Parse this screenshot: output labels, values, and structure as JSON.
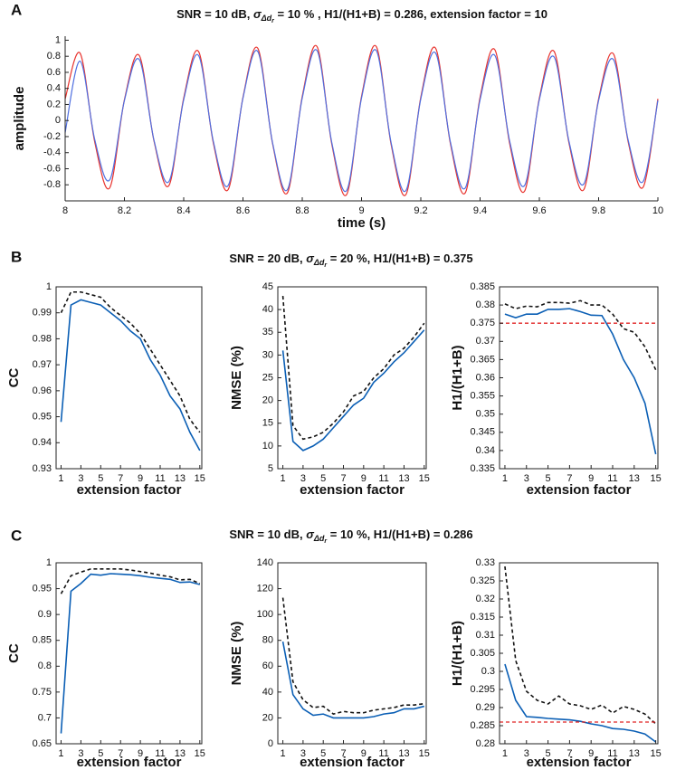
{
  "chart_data": [
    {
      "type": "line",
      "panel": "A",
      "title": [
        "SNR = 10 dB, ",
        "σ",
        "Δd",
        "r",
        " = 10 % , H1/(H1+B) = 0.286,   extension factor = 10"
      ],
      "xlabel": "time (s)",
      "ylabel": "amplitude",
      "box": false,
      "smooth": true,
      "x": [
        8,
        8.05,
        8.1,
        8.15,
        8.2,
        8.25,
        8.3,
        8.35,
        8.4,
        8.45,
        8.5,
        8.55,
        8.6,
        8.65,
        8.7,
        8.75,
        8.8,
        8.85,
        8.9,
        8.95,
        9,
        9.05,
        9.1,
        9.15,
        9.2,
        9.25,
        9.3,
        9.35,
        9.4,
        9.45,
        9.5,
        9.55,
        9.6,
        9.65,
        9.7,
        9.75,
        9.8,
        9.85,
        9.9,
        9.95,
        10
      ],
      "series": [
        {
          "color": "#e8332e",
          "style": "solid",
          "values": [
            0.27,
            0.84,
            -0.27,
            -0.84,
            0.26,
            0.81,
            -0.26,
            -0.81,
            0.28,
            0.86,
            -0.28,
            -0.86,
            0.29,
            0.9,
            -0.29,
            -0.9,
            0.3,
            0.92,
            -0.3,
            -0.92,
            0.3,
            0.92,
            -0.3,
            -0.92,
            0.29,
            0.9,
            -0.29,
            -0.9,
            0.29,
            0.88,
            -0.29,
            -0.88,
            0.28,
            0.86,
            -0.28,
            -0.86,
            0.27,
            0.83,
            -0.27,
            -0.83,
            0.27
          ]
        },
        {
          "color": "#4f6fe0",
          "style": "solid",
          "values": [
            -0.15,
            0.74,
            -0.24,
            -0.74,
            0.25,
            0.76,
            -0.25,
            -0.76,
            0.26,
            0.81,
            -0.26,
            -0.81,
            0.28,
            0.86,
            -0.28,
            -0.86,
            0.28,
            0.87,
            -0.28,
            -0.87,
            0.28,
            0.87,
            -0.28,
            -0.87,
            0.27,
            0.84,
            -0.27,
            -0.84,
            0.26,
            0.81,
            -0.26,
            -0.81,
            0.26,
            0.79,
            -0.26,
            -0.79,
            0.25,
            0.76,
            -0.25,
            -0.76,
            0.25
          ]
        }
      ],
      "xlim": [
        8,
        10
      ],
      "xticks": [
        8,
        8.2,
        8.4,
        8.6,
        8.8,
        9,
        9.2,
        9.4,
        9.6,
        9.8,
        10
      ],
      "ylim": [
        -1,
        1.05
      ],
      "yticks": [
        -0.8,
        -0.6,
        -0.4,
        -0.2,
        0,
        0.2,
        0.4,
        0.6,
        0.8,
        1
      ]
    },
    {
      "type": "line",
      "panel": "B",
      "title": [
        "SNR = 20 dB, ",
        "σ",
        "Δd",
        "r",
        " = 20 %, H1/(H1+B) = 0.375"
      ],
      "xlabel": "extension factor",
      "ylabel": "CC",
      "box": true,
      "x": [
        1,
        2,
        3,
        4,
        5,
        6,
        7,
        8,
        9,
        10,
        11,
        12,
        13,
        14,
        15
      ],
      "series": [
        {
          "color": "#0b5fb5",
          "style": "solid",
          "values": [
            0.948,
            0.993,
            0.995,
            0.994,
            0.993,
            0.99,
            0.987,
            0.983,
            0.98,
            0.972,
            0.966,
            0.958,
            0.953,
            0.944,
            0.937
          ]
        },
        {
          "color": "#111111",
          "style": "dashed",
          "values": [
            0.99,
            0.998,
            0.998,
            0.997,
            0.996,
            0.992,
            0.989,
            0.986,
            0.982,
            0.976,
            0.97,
            0.964,
            0.958,
            0.949,
            0.944
          ]
        }
      ],
      "xlim": [
        0.5,
        15.2
      ],
      "xticks": [
        1,
        3,
        5,
        7,
        9,
        11,
        13,
        15
      ],
      "ylim": [
        0.93,
        1
      ],
      "yticks": [
        0.93,
        0.94,
        0.95,
        0.96,
        0.97,
        0.98,
        0.99,
        1
      ]
    },
    {
      "type": "line",
      "xlabel": "extension factor",
      "ylabel": "NMSE (%)",
      "box": true,
      "x": [
        1,
        2,
        3,
        4,
        5,
        6,
        7,
        8,
        9,
        10,
        11,
        12,
        13,
        14,
        15
      ],
      "series": [
        {
          "color": "#0b5fb5",
          "style": "solid",
          "values": [
            31,
            11,
            9,
            10,
            11.5,
            14,
            16.5,
            19,
            20.5,
            24,
            26,
            28.5,
            30.5,
            33,
            35.5
          ]
        },
        {
          "color": "#111111",
          "style": "dashed",
          "values": [
            43,
            14.5,
            11.5,
            12,
            13,
            15,
            17.5,
            21,
            22,
            25,
            27,
            30,
            31.5,
            34,
            37
          ]
        }
      ],
      "xlim": [
        0.5,
        15.2
      ],
      "xticks": [
        1,
        3,
        5,
        7,
        9,
        11,
        13,
        15
      ],
      "ylim": [
        5,
        45
      ],
      "yticks": [
        5,
        10,
        15,
        20,
        25,
        30,
        35,
        40,
        45
      ]
    },
    {
      "type": "line",
      "xlabel": "extension factor",
      "ylabel": "H1/(H1+B)",
      "box": true,
      "x": [
        1,
        2,
        3,
        4,
        5,
        6,
        7,
        8,
        9,
        10,
        11,
        12,
        13,
        14,
        15
      ],
      "series": [
        {
          "color": "#0b5fb5",
          "style": "solid",
          "values": [
            0.3775,
            0.3765,
            0.3775,
            0.3775,
            0.3788,
            0.3788,
            0.379,
            0.3782,
            0.3772,
            0.3771,
            0.372,
            0.365,
            0.36,
            0.353,
            0.339
          ]
        },
        {
          "color": "#111111",
          "style": "dashed",
          "values": [
            0.3803,
            0.379,
            0.3797,
            0.3795,
            0.3807,
            0.3807,
            0.3805,
            0.3812,
            0.38,
            0.38,
            0.3775,
            0.3735,
            0.3725,
            0.3685,
            0.3622
          ]
        }
      ],
      "reference": {
        "value": 0.375,
        "color": "#e02424"
      },
      "xlim": [
        0.5,
        15.2
      ],
      "xticks": [
        1,
        3,
        5,
        7,
        9,
        11,
        13,
        15
      ],
      "ylim": [
        0.335,
        0.385
      ],
      "yticks": [
        0.335,
        0.34,
        0.345,
        0.35,
        0.355,
        0.36,
        0.365,
        0.37,
        0.375,
        0.38,
        0.385
      ]
    },
    {
      "type": "line",
      "panel": "C",
      "title": [
        "SNR = 10 dB, ",
        "σ",
        "Δd",
        "r",
        " = 10 %, H1/(H1+B) = 0.286"
      ],
      "xlabel": "extension factor",
      "ylabel": "CC",
      "box": true,
      "x": [
        1,
        2,
        3,
        4,
        5,
        6,
        7,
        8,
        9,
        10,
        11,
        12,
        13,
        14,
        15
      ],
      "series": [
        {
          "color": "#0b5fb5",
          "style": "solid",
          "values": [
            0.67,
            0.945,
            0.96,
            0.978,
            0.976,
            0.979,
            0.978,
            0.977,
            0.975,
            0.972,
            0.97,
            0.968,
            0.962,
            0.963,
            0.958
          ]
        },
        {
          "color": "#111111",
          "style": "dashed",
          "values": [
            0.94,
            0.975,
            0.982,
            0.988,
            0.988,
            0.988,
            0.988,
            0.986,
            0.983,
            0.98,
            0.976,
            0.973,
            0.967,
            0.968,
            0.96
          ]
        }
      ],
      "xlim": [
        0.5,
        15.2
      ],
      "xticks": [
        1,
        3,
        5,
        7,
        9,
        11,
        13,
        15
      ],
      "ylim": [
        0.65,
        1
      ],
      "yticks": [
        0.65,
        0.7,
        0.75,
        0.8,
        0.85,
        0.9,
        0.95,
        1
      ]
    },
    {
      "type": "line",
      "xlabel": "extension factor",
      "ylabel": "NMSE (%)",
      "box": true,
      "x": [
        1,
        2,
        3,
        4,
        5,
        6,
        7,
        8,
        9,
        10,
        11,
        12,
        13,
        14,
        15
      ],
      "series": [
        {
          "color": "#0b5fb5",
          "style": "solid",
          "values": [
            79,
            38,
            27,
            22,
            23,
            20,
            20,
            20,
            20,
            21,
            23,
            24,
            27,
            27,
            29
          ]
        },
        {
          "color": "#111111",
          "style": "dashed",
          "values": [
            113,
            48,
            34,
            28,
            29,
            23,
            25,
            24,
            24,
            26,
            27,
            28,
            30,
            30,
            31
          ]
        }
      ],
      "xlim": [
        0.5,
        15.2
      ],
      "xticks": [
        1,
        3,
        5,
        7,
        9,
        11,
        13,
        15
      ],
      "ylim": [
        0,
        140
      ],
      "yticks": [
        0,
        20,
        40,
        60,
        80,
        100,
        120,
        140
      ]
    },
    {
      "type": "line",
      "xlabel": "extension factor",
      "ylabel": "H1/(H1+B)",
      "box": true,
      "x": [
        1,
        2,
        3,
        4,
        5,
        6,
        7,
        8,
        9,
        10,
        11,
        12,
        13,
        14,
        15
      ],
      "series": [
        {
          "color": "#0b5fb5",
          "style": "solid",
          "values": [
            0.302,
            0.292,
            0.2875,
            0.2873,
            0.287,
            0.2868,
            0.2866,
            0.2862,
            0.2855,
            0.285,
            0.2842,
            0.284,
            0.2835,
            0.2827,
            0.2805
          ]
        },
        {
          "color": "#111111",
          "style": "dashed",
          "values": [
            0.329,
            0.303,
            0.2945,
            0.292,
            0.291,
            0.2932,
            0.291,
            0.2905,
            0.2895,
            0.2907,
            0.2885,
            0.2903,
            0.2895,
            0.2882,
            0.2855
          ]
        }
      ],
      "reference": {
        "value": 0.286,
        "color": "#e02424"
      },
      "xlim": [
        0.5,
        15.2
      ],
      "xticks": [
        1,
        3,
        5,
        7,
        9,
        11,
        13,
        15
      ],
      "ylim": [
        0.28,
        0.33
      ],
      "yticks": [
        0.28,
        0.285,
        0.29,
        0.295,
        0.3,
        0.305,
        0.31,
        0.315,
        0.32,
        0.325,
        0.33
      ]
    }
  ]
}
